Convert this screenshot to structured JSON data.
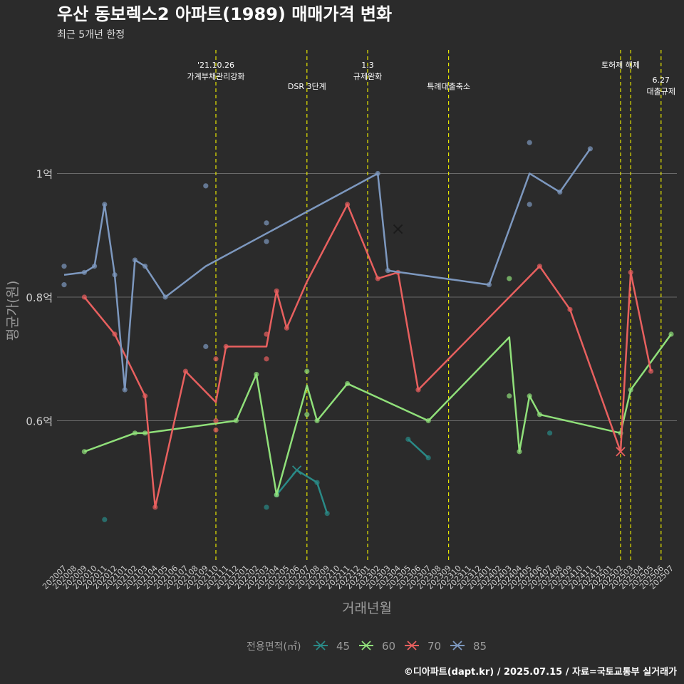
{
  "chart_data": {
    "type": "line",
    "title": "우산 동보렉스2 아파트(1989) 매매가격 변화",
    "subtitle": "최근 5개년 한정",
    "xlabel": "거래년월",
    "ylabel": "평균가(원)",
    "caption": "©디아파트(dapt.kr) / 2025.07.15 / 자료=국토교통부 실거래가",
    "legend_title": "전용면적(㎡)",
    "legend_position": "bottom",
    "grid": true,
    "ylim": [
      0.37,
      1.2
    ],
    "y_ticks": [
      {
        "value": 0.6,
        "label": "0.6억"
      },
      {
        "value": 0.8,
        "label": "0.8억"
      },
      {
        "value": 1.0,
        "label": "1억"
      }
    ],
    "categories": [
      "202007",
      "202008",
      "202009",
      "202010",
      "202011",
      "202012",
      "202101",
      "202102",
      "202103",
      "202104",
      "202105",
      "202106",
      "202107",
      "202108",
      "202109",
      "202110",
      "202111",
      "202112",
      "202201",
      "202202",
      "202203",
      "202204",
      "202205",
      "202206",
      "202207",
      "202208",
      "202209",
      "202210",
      "202211",
      "202212",
      "202301",
      "202302",
      "202303",
      "202304",
      "202305",
      "202306",
      "202307",
      "202308",
      "202309",
      "202310",
      "202311",
      "202312",
      "202401",
      "202402",
      "202403",
      "202404",
      "202405",
      "202406",
      "202407",
      "202408",
      "202409",
      "202410",
      "202411",
      "202412",
      "202501",
      "202502",
      "202503",
      "202504",
      "202505",
      "202506",
      "202507"
    ],
    "events": [
      {
        "x": 15,
        "lines": [
          "'21.10.26",
          "가계부채관리강화"
        ],
        "level": 1
      },
      {
        "x": 24,
        "lines": [
          "DSR 3단계"
        ],
        "level": 2
      },
      {
        "x": 30,
        "lines": [
          "1.3",
          "규제완화"
        ],
        "level": 1
      },
      {
        "x": 38,
        "lines": [
          "특례대출축소"
        ],
        "level": 2
      },
      {
        "x": 55,
        "lines": [
          "토허제 해제"
        ],
        "level": 1
      },
      {
        "x": 56,
        "lines": [],
        "level": 1
      },
      {
        "x": 59,
        "lines": [
          "6.27",
          "대출규제"
        ],
        "level": 3
      }
    ],
    "series": [
      {
        "name": "45",
        "color": "#2a8a87",
        "line": [
          [
            21,
            0.48
          ],
          [
            23,
            0.52
          ],
          [
            25,
            0.5
          ],
          [
            26,
            0.45
          ]
        ],
        "points": [
          [
            4,
            0.44
          ],
          [
            20,
            0.46
          ],
          [
            21,
            0.48
          ],
          [
            25,
            0.5
          ],
          [
            26,
            0.45
          ],
          [
            34,
            0.57
          ],
          [
            36,
            0.54
          ],
          [
            48,
            0.58
          ]
        ],
        "extra_lines": [
          [
            [
              34,
              0.57
            ],
            [
              36,
              0.54
            ]
          ]
        ],
        "markers": [
          [
            23,
            0.52
          ]
        ]
      },
      {
        "name": "60",
        "color": "#90e07a",
        "line": [
          [
            2,
            0.55
          ],
          [
            7,
            0.58
          ],
          [
            8,
            0.58
          ],
          [
            17,
            0.6
          ],
          [
            19,
            0.675
          ],
          [
            21,
            0.48
          ],
          [
            24,
            0.657
          ],
          [
            25,
            0.6
          ],
          [
            28,
            0.66
          ],
          [
            36,
            0.6
          ],
          [
            44,
            0.735
          ],
          [
            45,
            0.55
          ],
          [
            46,
            0.64
          ],
          [
            47,
            0.61
          ],
          [
            55,
            0.58
          ],
          [
            56,
            0.65
          ],
          [
            60,
            0.74
          ]
        ],
        "points": [
          [
            2,
            0.55
          ],
          [
            7,
            0.58
          ],
          [
            8,
            0.58
          ],
          [
            17,
            0.6
          ],
          [
            19,
            0.675
          ],
          [
            21,
            0.48
          ],
          [
            24,
            0.68
          ],
          [
            24,
            0.61
          ],
          [
            25,
            0.6
          ],
          [
            28,
            0.66
          ],
          [
            36,
            0.6
          ],
          [
            44,
            0.64
          ],
          [
            44,
            0.83
          ],
          [
            45,
            0.55
          ],
          [
            46,
            0.64
          ],
          [
            47,
            0.61
          ],
          [
            55,
            0.58
          ],
          [
            56,
            0.65
          ],
          [
            60,
            0.74
          ]
        ],
        "markers": []
      },
      {
        "name": "70",
        "color": "#e8605f",
        "line": [
          [
            2,
            0.8
          ],
          [
            5,
            0.74
          ],
          [
            8,
            0.64
          ],
          [
            9,
            0.46
          ],
          [
            12,
            0.68
          ],
          [
            15,
            0.63
          ],
          [
            16,
            0.72
          ],
          [
            20,
            0.72
          ],
          [
            21,
            0.81
          ],
          [
            22,
            0.75
          ],
          [
            24,
            0.825
          ],
          [
            28,
            0.95
          ],
          [
            31,
            0.83
          ],
          [
            33,
            0.84
          ],
          [
            35,
            0.65
          ],
          [
            47,
            0.85
          ],
          [
            50,
            0.78
          ],
          [
            55,
            0.55
          ],
          [
            56,
            0.84
          ],
          [
            58,
            0.68
          ]
        ],
        "points": [
          [
            2,
            0.8
          ],
          [
            5,
            0.74
          ],
          [
            8,
            0.64
          ],
          [
            9,
            0.46
          ],
          [
            12,
            0.68
          ],
          [
            15,
            0.7
          ],
          [
            15,
            0.6
          ],
          [
            15,
            0.585
          ],
          [
            16,
            0.72
          ],
          [
            20,
            0.74
          ],
          [
            20,
            0.7
          ],
          [
            21,
            0.81
          ],
          [
            22,
            0.75
          ],
          [
            28,
            0.95
          ],
          [
            31,
            0.83
          ],
          [
            33,
            0.84
          ],
          [
            35,
            0.65
          ],
          [
            47,
            0.85
          ],
          [
            50,
            0.78
          ],
          [
            56,
            0.84
          ],
          [
            58,
            0.68
          ]
        ],
        "markers": [
          [
            55,
            0.55
          ]
        ]
      },
      {
        "name": "85",
        "color": "#7d98bf",
        "line": [
          [
            0,
            0.836
          ],
          [
            2,
            0.84
          ],
          [
            3,
            0.85
          ],
          [
            4,
            0.95
          ],
          [
            5,
            0.836
          ],
          [
            6,
            0.65
          ],
          [
            7,
            0.86
          ],
          [
            8,
            0.85
          ],
          [
            10,
            0.8
          ],
          [
            14,
            0.85
          ],
          [
            31,
            1.0
          ],
          [
            32,
            0.843
          ],
          [
            42,
            0.82
          ],
          [
            46,
            1.0
          ],
          [
            49,
            0.97
          ],
          [
            52,
            1.04
          ]
        ],
        "points": [
          [
            0,
            0.85
          ],
          [
            0,
            0.82
          ],
          [
            2,
            0.84
          ],
          [
            3,
            0.85
          ],
          [
            4,
            0.95
          ],
          [
            5,
            0.836
          ],
          [
            6,
            0.65
          ],
          [
            7,
            0.86
          ],
          [
            8,
            0.85
          ],
          [
            10,
            0.8
          ],
          [
            14,
            0.98
          ],
          [
            14,
            0.72
          ],
          [
            20,
            0.92
          ],
          [
            20,
            0.89
          ],
          [
            31,
            1.0
          ],
          [
            32,
            0.843
          ],
          [
            42,
            0.82
          ],
          [
            46,
            1.05
          ],
          [
            46,
            0.95
          ],
          [
            49,
            0.97
          ],
          [
            52,
            1.04
          ]
        ],
        "markers": [
          [
            33,
            0.91
          ]
        ]
      }
    ]
  }
}
